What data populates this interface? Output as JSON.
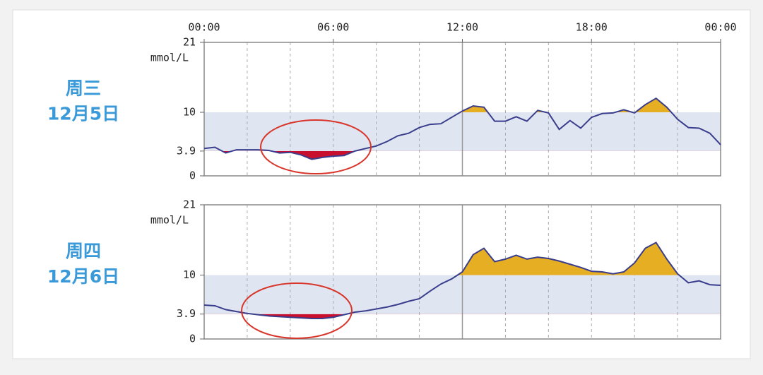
{
  "chart_data": [
    {
      "type": "line",
      "day": "周三",
      "date": "12月5日",
      "y_unit": "mmol/L",
      "x": [
        0,
        0.5,
        1,
        1.5,
        2,
        2.5,
        3,
        3.5,
        4,
        4.5,
        5,
        5.5,
        6,
        6.5,
        7,
        7.5,
        8,
        8.5,
        9,
        9.5,
        10,
        10.5,
        11,
        11.5,
        12,
        12.5,
        13,
        13.5,
        14,
        14.5,
        15,
        15.5,
        16,
        16.5,
        17,
        17.5,
        18,
        18.5,
        19,
        19.5,
        20,
        20.5,
        21,
        21.5,
        22,
        22.5,
        23,
        23.5,
        24
      ],
      "values": [
        4.3,
        4.5,
        3.6,
        4.1,
        4.1,
        4.1,
        4.0,
        3.6,
        3.7,
        3.3,
        2.6,
        2.9,
        3.1,
        3.2,
        3.9,
        4.3,
        4.7,
        5.4,
        6.3,
        6.7,
        7.6,
        8.1,
        8.2,
        9.2,
        10.2,
        11.0,
        10.8,
        8.6,
        8.6,
        9.3,
        8.6,
        10.3,
        9.9,
        7.3,
        8.7,
        7.5,
        9.2,
        9.8,
        9.9,
        10.4,
        9.9,
        11.2,
        12.2,
        10.8,
        8.9,
        7.6,
        7.5,
        6.7,
        4.9
      ],
      "xlim": [
        0,
        24
      ],
      "xticks": [
        {
          "value": 0,
          "label": "00:00"
        },
        {
          "value": 6,
          "label": "06:00"
        },
        {
          "value": 12,
          "label": "12:00"
        },
        {
          "value": 18,
          "label": "18:00"
        },
        {
          "value": 24,
          "label": "00:00"
        }
      ],
      "xgrid": [
        2,
        4,
        6,
        8,
        10,
        12,
        14,
        16,
        18,
        20,
        22
      ],
      "solid_grid": 12,
      "ylim": [
        0,
        21
      ],
      "yticks": [
        0,
        3.9,
        10,
        21
      ],
      "target_range": [
        3.9,
        10
      ],
      "color": "#3a3d8c",
      "high_color": "#e6ae22",
      "low_color": "#c8102e",
      "band_color": "#dfe6f1"
    },
    {
      "type": "line",
      "day": "周四",
      "date": "12月6日",
      "y_unit": "mmol/L",
      "x": [
        0,
        0.5,
        1,
        1.5,
        2,
        2.5,
        3,
        3.5,
        4,
        4.5,
        5,
        5.5,
        6,
        6.5,
        7,
        7.5,
        8,
        8.5,
        9,
        9.5,
        10,
        10.5,
        11,
        11.5,
        12,
        12.5,
        13,
        13.5,
        14,
        14.5,
        15,
        15.5,
        16,
        16.5,
        17,
        17.5,
        18,
        18.5,
        19,
        19.5,
        20,
        20.5,
        21,
        21.5,
        22,
        22.5,
        23,
        23.5,
        24
      ],
      "values": [
        5.3,
        5.2,
        4.6,
        4.3,
        4.0,
        3.8,
        3.6,
        3.5,
        3.4,
        3.3,
        3.2,
        3.2,
        3.4,
        3.8,
        4.2,
        4.4,
        4.7,
        5.0,
        5.4,
        5.9,
        6.3,
        7.5,
        8.6,
        9.4,
        10.5,
        13.2,
        14.2,
        12.1,
        12.5,
        13.1,
        12.5,
        12.8,
        12.6,
        12.2,
        11.7,
        11.2,
        10.6,
        10.5,
        10.2,
        10.5,
        11.9,
        14.2,
        15.1,
        12.5,
        10.2,
        8.8,
        9.1,
        8.5,
        8.4
      ],
      "xlim": [
        0,
        24
      ],
      "xgrid": [
        2,
        4,
        6,
        8,
        10,
        12,
        14,
        16,
        18,
        20,
        22
      ],
      "solid_grid": 12,
      "ylim": [
        0,
        21
      ],
      "yticks": [
        0,
        3.9,
        10,
        21
      ],
      "target_range": [
        3.9,
        10
      ],
      "color": "#3a3d8c",
      "high_color": "#e6ae22",
      "low_color": "#c8102e",
      "band_color": "#dfe6f1"
    }
  ]
}
